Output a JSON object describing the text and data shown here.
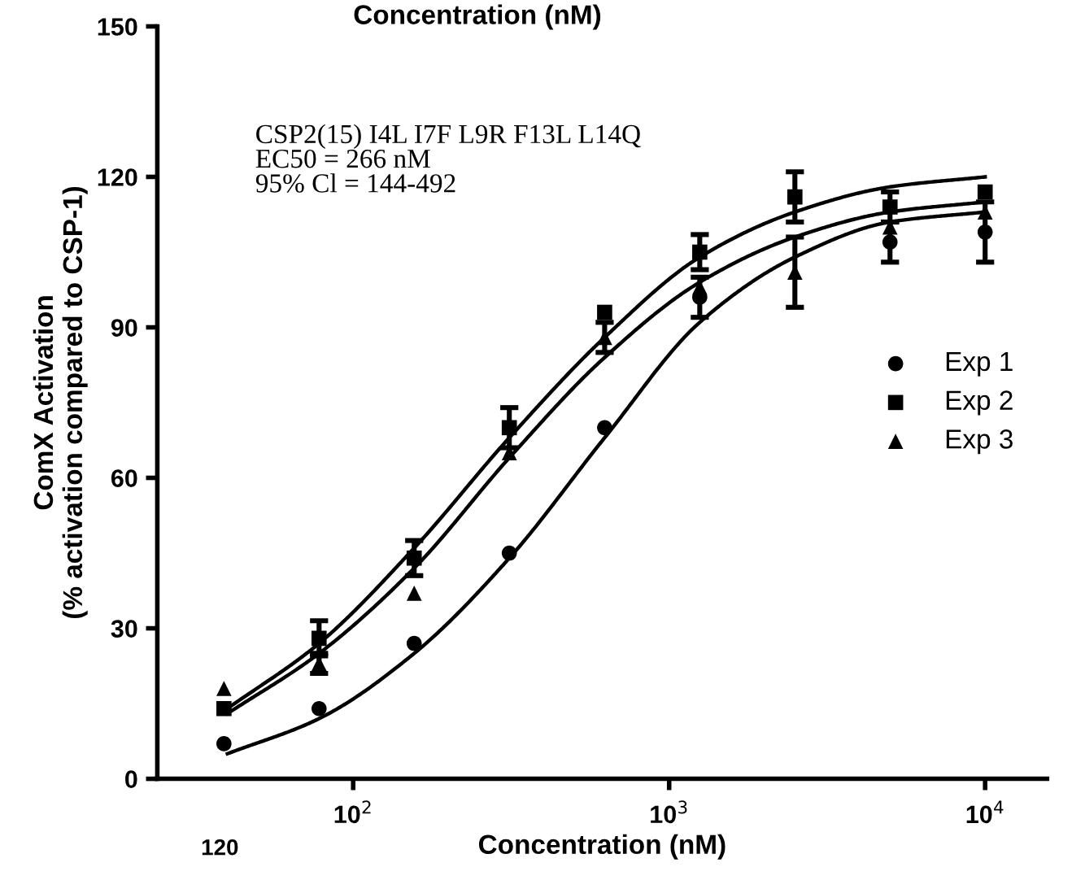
{
  "chart_data": {
    "type": "scatter",
    "xlabel": "Concentration (nM)",
    "ylabel": "ComX Activation\n(% activation compared to CSP-1)",
    "annotations": [
      "CSP2(15) I4L I7F L9R F13L L14Q\nEC50 = 266 nM\n95% Cl = 144-492",
      "Concentration (nM)",
      "120"
    ],
    "log": "x",
    "xlim": [
      24,
      15700
    ],
    "xticks": [
      {
        "value": 100,
        "label": "10$^{2}$"
      },
      {
        "value": 1000,
        "label": "10$^{3}$"
      },
      {
        "value": 10000,
        "label": "10$^{4}$"
      }
    ],
    "ylim": [
      0,
      150
    ],
    "yticks": [
      0,
      30,
      60,
      90,
      120,
      150
    ],
    "grid": false,
    "legend": "right",
    "x": [
      39,
      78,
      156,
      312,
      625,
      1250,
      2500,
      5000,
      10000
    ],
    "series": [
      {
        "name": "Exp 1",
        "color": "#000000",
        "marker": "circle",
        "values": [
          7,
          14,
          27,
          45,
          70,
          96,
          null,
          107,
          109
        ],
        "errors": [
          null,
          null,
          null,
          null,
          null,
          4,
          null,
          4,
          6
        ]
      },
      {
        "name": "Exp 2",
        "color": "#000000",
        "marker": "square",
        "values": [
          14,
          28,
          44,
          70,
          93,
          105,
          116,
          114,
          117
        ],
        "errors": [
          null,
          3.5,
          3.5,
          4,
          null,
          3.5,
          5,
          3,
          null
        ]
      },
      {
        "name": "Exp 3",
        "color": "#000000",
        "marker": "triangle",
        "values": [
          18,
          23,
          37,
          65,
          88,
          98,
          101,
          110,
          113
        ],
        "errors": [
          null,
          2,
          null,
          null,
          3,
          null,
          7,
          null,
          null
        ]
      },
      {
        "type": "line",
        "color": "#000000",
        "line_style": "solid",
        "x": [
          40,
          78,
          156,
          312,
          625,
          1250,
          2500,
          5000,
          10000
        ],
        "values": [
          14,
          27,
          46,
          68,
          88,
          104,
          113,
          118,
          120
        ]
      },
      {
        "type": "line",
        "color": "#000000",
        "line_style": "solid",
        "x": [
          40,
          78,
          156,
          312,
          625,
          1250,
          2500,
          5000,
          10000
        ],
        "values": [
          13,
          25,
          42,
          64,
          84,
          99,
          108,
          113,
          115
        ]
      },
      {
        "type": "line",
        "color": "#000000",
        "line_style": "solid",
        "x": [
          40,
          78,
          156,
          312,
          625,
          1250,
          2500,
          5000,
          10000
        ],
        "values": [
          5,
          12,
          25,
          44,
          68,
          91,
          104,
          111,
          113
        ]
      }
    ]
  }
}
